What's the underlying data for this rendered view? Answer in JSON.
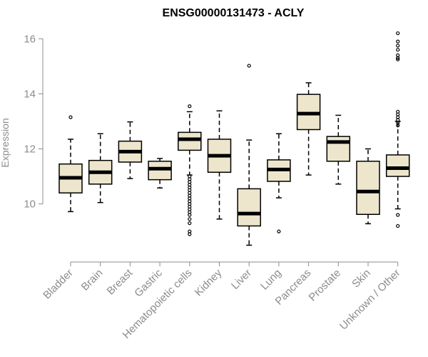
{
  "chart_data": {
    "type": "box",
    "title": "ENSG00000131473 - ACLY",
    "ylabel": "Expression",
    "xlabel": "",
    "ylim": [
      8.2,
      16.5
    ],
    "yticks": [
      10,
      12,
      14,
      16
    ],
    "box_fill": "#ede6cc",
    "categories": [
      "Bladder",
      "Brain",
      "Breast",
      "Gastric",
      "Hematopoietic cells",
      "Kidney",
      "Liver",
      "Lung",
      "Pancreas",
      "Prostate",
      "Skin",
      "Unknown / Other"
    ],
    "boxes": [
      {
        "whisker_low": 9.72,
        "q1": 10.4,
        "median": 10.95,
        "q3": 11.45,
        "whisker_high": 12.35,
        "outliers": [
          13.15
        ]
      },
      {
        "whisker_low": 10.05,
        "q1": 10.72,
        "median": 11.15,
        "q3": 11.58,
        "whisker_high": 12.55,
        "outliers": []
      },
      {
        "whisker_low": 10.92,
        "q1": 11.52,
        "median": 11.9,
        "q3": 12.28,
        "whisker_high": 12.98,
        "outliers": []
      },
      {
        "whisker_low": 10.58,
        "q1": 10.88,
        "median": 11.28,
        "q3": 11.55,
        "whisker_high": 11.65,
        "outliers": []
      },
      {
        "whisker_low": 11.05,
        "q1": 11.95,
        "median": 12.35,
        "q3": 12.6,
        "whisker_high": 13.35,
        "outliers": [
          13.55,
          11.0,
          10.9,
          10.8,
          10.7,
          10.6,
          10.5,
          10.4,
          10.3,
          10.2,
          10.1,
          10.0,
          9.9,
          9.8,
          9.7,
          9.6,
          9.45,
          9.3,
          9.0,
          8.9
        ]
      },
      {
        "whisker_low": 9.45,
        "q1": 11.15,
        "median": 11.75,
        "q3": 12.35,
        "whisker_high": 13.38,
        "outliers": []
      },
      {
        "whisker_low": 8.5,
        "q1": 9.2,
        "median": 9.65,
        "q3": 10.55,
        "whisker_high": 12.32,
        "outliers": [
          15.02
        ]
      },
      {
        "whisker_low": 10.22,
        "q1": 10.82,
        "median": 11.25,
        "q3": 11.6,
        "whisker_high": 12.55,
        "outliers": [
          9.0
        ]
      },
      {
        "whisker_low": 11.05,
        "q1": 12.7,
        "median": 13.28,
        "q3": 13.98,
        "whisker_high": 14.4,
        "outliers": []
      },
      {
        "whisker_low": 10.72,
        "q1": 11.55,
        "median": 12.25,
        "q3": 12.45,
        "whisker_high": 13.22,
        "outliers": []
      },
      {
        "whisker_low": 9.28,
        "q1": 9.62,
        "median": 10.45,
        "q3": 11.55,
        "whisker_high": 12.0,
        "outliers": []
      },
      {
        "whisker_low": 9.82,
        "q1": 11.0,
        "median": 11.3,
        "q3": 11.78,
        "whisker_high": 13.0,
        "outliers": [
          16.2,
          15.9,
          15.75,
          15.6,
          15.4,
          15.3,
          15.25,
          13.35,
          13.25,
          13.15,
          13.05,
          12.95,
          12.85,
          9.6,
          9.2
        ]
      }
    ],
    "grid": false,
    "legend": "none"
  }
}
